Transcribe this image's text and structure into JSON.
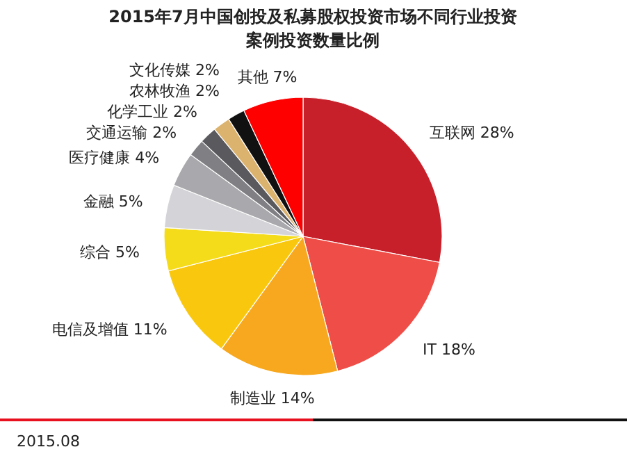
{
  "chart_data": {
    "type": "pie",
    "title": "2015年7月中国创投及私募股权投资市场不同行业投资案例投资数量比例",
    "categories": [
      "互联网",
      "IT",
      "制造业",
      "电信及增值",
      "综合",
      "金融",
      "医疗健康",
      "交通运输",
      "化学工业",
      "农林牧渔",
      "文化传媒",
      "其他"
    ],
    "values": [
      28,
      18,
      14,
      11,
      5,
      5,
      4,
      2,
      2,
      2,
      2,
      7
    ],
    "value_labels": [
      "28%",
      "18%",
      "14%",
      "11%",
      "5%",
      "5%",
      "4%",
      "2%",
      "2%",
      "2%",
      "2%",
      "7%"
    ],
    "colors": [
      "#c8202a",
      "#ef4e48",
      "#f7a81e",
      "#f9c80e",
      "#f5dc1a",
      "#d4d4d8",
      "#a9a9ad",
      "#808084",
      "#5a5a5e",
      "#dcb36e",
      "#111111",
      "#ff0000"
    ],
    "annotations": [
      "2015.08"
    ]
  }
}
